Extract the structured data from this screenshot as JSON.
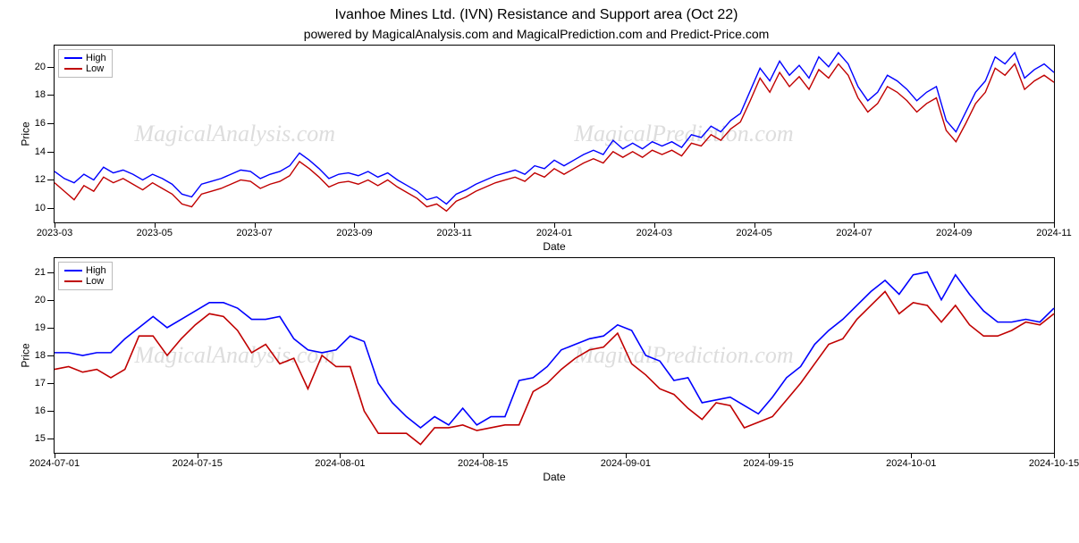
{
  "title": "Ivanhoe Mines Ltd. (IVN) Resistance and Support area (Oct 22)",
  "subtitle": "powered by MagicalAnalysis.com and MagicalPrediction.com and Predict-Price.com",
  "legend": {
    "high": "High",
    "low": "Low"
  },
  "colors": {
    "high": "#0000ff",
    "low": "#c00000",
    "border": "#000000",
    "background": "#ffffff",
    "watermark": "#dddddd"
  },
  "watermarks": [
    "MagicalAnalysis.com",
    "MagicalPrediction.com"
  ],
  "chart1": {
    "type": "line",
    "ylabel": "Price",
    "xlabel": "Date",
    "ylim": [
      9,
      21.5
    ],
    "yticks": [
      10,
      12,
      14,
      16,
      18,
      20
    ],
    "xticks": [
      "2023-03",
      "2023-05",
      "2023-07",
      "2023-09",
      "2023-11",
      "2024-01",
      "2024-03",
      "2024-05",
      "2024-07",
      "2024-09",
      "2024-11"
    ],
    "line_width": 1.4,
    "font_size_ticks": 11,
    "font_size_label": 12,
    "high": [
      12.6,
      12.1,
      11.8,
      12.4,
      12.0,
      12.9,
      12.5,
      12.7,
      12.4,
      12.0,
      12.4,
      12.1,
      11.7,
      11.0,
      10.8,
      11.7,
      11.9,
      12.1,
      12.4,
      12.7,
      12.6,
      12.1,
      12.4,
      12.6,
      13.0,
      13.9,
      13.4,
      12.8,
      12.1,
      12.4,
      12.5,
      12.3,
      12.6,
      12.2,
      12.5,
      12.0,
      11.6,
      11.2,
      10.6,
      10.8,
      10.3,
      11.0,
      11.3,
      11.7,
      12.0,
      12.3,
      12.5,
      12.7,
      12.4,
      13.0,
      12.8,
      13.4,
      13.0,
      13.4,
      13.8,
      14.1,
      13.8,
      14.8,
      14.2,
      14.6,
      14.2,
      14.7,
      14.4,
      14.7,
      14.3,
      15.2,
      15.0,
      15.8,
      15.4,
      16.2,
      16.7,
      18.3,
      19.9,
      19.0,
      20.4,
      19.4,
      20.1,
      19.2,
      20.7,
      20.0,
      21.0,
      20.2,
      18.6,
      17.6,
      18.2,
      19.4,
      19.0,
      18.4,
      17.6,
      18.2,
      18.6,
      16.2,
      15.4,
      16.8,
      18.2,
      19.0,
      20.7,
      20.2,
      21.0,
      19.2,
      19.8,
      20.2,
      19.6
    ],
    "low": [
      11.8,
      11.2,
      10.6,
      11.6,
      11.2,
      12.2,
      11.8,
      12.1,
      11.7,
      11.3,
      11.8,
      11.4,
      11.0,
      10.3,
      10.1,
      11.0,
      11.2,
      11.4,
      11.7,
      12.0,
      11.9,
      11.4,
      11.7,
      11.9,
      12.3,
      13.3,
      12.8,
      12.2,
      11.5,
      11.8,
      11.9,
      11.7,
      12.0,
      11.6,
      12.0,
      11.5,
      11.1,
      10.7,
      10.1,
      10.3,
      9.8,
      10.5,
      10.8,
      11.2,
      11.5,
      11.8,
      12.0,
      12.2,
      11.9,
      12.5,
      12.2,
      12.8,
      12.4,
      12.8,
      13.2,
      13.5,
      13.2,
      14.0,
      13.6,
      14.0,
      13.6,
      14.1,
      13.8,
      14.1,
      13.7,
      14.6,
      14.4,
      15.2,
      14.8,
      15.6,
      16.1,
      17.6,
      19.2,
      18.2,
      19.6,
      18.6,
      19.3,
      18.4,
      19.8,
      19.2,
      20.2,
      19.4,
      17.8,
      16.8,
      17.4,
      18.6,
      18.2,
      17.6,
      16.8,
      17.4,
      17.8,
      15.5,
      14.7,
      16.0,
      17.4,
      18.2,
      19.9,
      19.4,
      20.2,
      18.4,
      19.0,
      19.4,
      18.9
    ]
  },
  "chart2": {
    "type": "line",
    "ylabel": "Price",
    "xlabel": "Date",
    "ylim": [
      14.5,
      21.5
    ],
    "yticks": [
      15,
      16,
      17,
      18,
      19,
      20,
      21
    ],
    "xticks": [
      "2024-07-01",
      "2024-07-15",
      "2024-08-01",
      "2024-08-15",
      "2024-09-01",
      "2024-09-15",
      "2024-10-01",
      "2024-10-15"
    ],
    "line_width": 1.6,
    "font_size_ticks": 11,
    "font_size_label": 12,
    "high": [
      18.1,
      18.1,
      18.0,
      18.1,
      18.1,
      18.6,
      19.0,
      19.4,
      19.0,
      19.3,
      19.6,
      19.9,
      19.9,
      19.7,
      19.3,
      19.3,
      19.4,
      18.6,
      18.2,
      18.1,
      18.2,
      18.7,
      18.5,
      17.0,
      16.3,
      15.8,
      15.4,
      15.8,
      15.5,
      16.1,
      15.5,
      15.8,
      15.8,
      17.1,
      17.2,
      17.6,
      18.2,
      18.4,
      18.6,
      18.7,
      19.1,
      18.9,
      18.0,
      17.8,
      17.1,
      17.2,
      16.3,
      16.4,
      16.5,
      16.2,
      15.9,
      16.5,
      17.2,
      17.6,
      18.4,
      18.9,
      19.3,
      19.8,
      20.3,
      20.7,
      20.2,
      20.9,
      21.0,
      20.0,
      20.9,
      20.2,
      19.6,
      19.2,
      19.2,
      19.3,
      19.2,
      19.7
    ],
    "low": [
      17.5,
      17.6,
      17.4,
      17.5,
      17.2,
      17.5,
      18.7,
      18.7,
      18.0,
      18.6,
      19.1,
      19.5,
      19.4,
      18.9,
      18.1,
      18.4,
      17.7,
      17.9,
      16.8,
      18.0,
      17.6,
      17.6,
      16.0,
      15.2,
      15.2,
      15.2,
      14.8,
      15.4,
      15.4,
      15.5,
      15.3,
      15.4,
      15.5,
      15.5,
      16.7,
      17.0,
      17.5,
      17.9,
      18.2,
      18.3,
      18.8,
      17.7,
      17.3,
      16.8,
      16.6,
      16.1,
      15.7,
      16.3,
      16.2,
      15.4,
      15.6,
      15.8,
      16.4,
      17.0,
      17.7,
      18.4,
      18.6,
      19.3,
      19.8,
      20.3,
      19.5,
      19.9,
      19.8,
      19.2,
      19.8,
      19.1,
      18.7,
      18.7,
      18.9,
      19.2,
      19.1,
      19.5
    ]
  }
}
